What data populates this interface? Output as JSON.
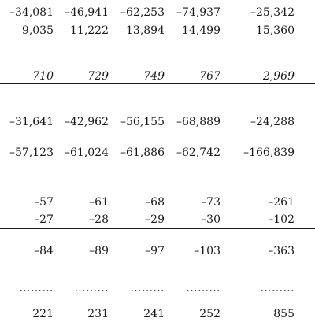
{
  "table": {
    "rows": [
      {
        "cells": [
          "–34,081",
          "–46,941",
          "–62,253",
          "–74,937",
          "–25,342"
        ]
      },
      {
        "cells": [
          "9,035",
          "11,222",
          "13,894",
          "14,499",
          "15,360"
        ]
      },
      {
        "cells": [
          "710",
          "729",
          "749",
          "767",
          "2,969"
        ]
      },
      {
        "cells": [
          "–31,641",
          "–42,962",
          "–56,155",
          "–68,889",
          "–24,288"
        ]
      },
      {
        "cells": [
          "–57,123",
          "–61,024",
          "–61,886",
          "–62,742",
          "–166,839"
        ]
      },
      {
        "cells": [
          "–57",
          "–61",
          "–68",
          "–73",
          "–261"
        ]
      },
      {
        "cells": [
          "–27",
          "–28",
          "–29",
          "–30",
          "–102"
        ]
      },
      {
        "cells": [
          "–84",
          "–89",
          "–97",
          "–103",
          "–363"
        ]
      },
      {
        "cells": [
          "………",
          "………",
          "………",
          "………",
          "………"
        ]
      },
      {
        "cells": [
          "221",
          "231",
          "241",
          "252",
          "855"
        ]
      }
    ]
  }
}
